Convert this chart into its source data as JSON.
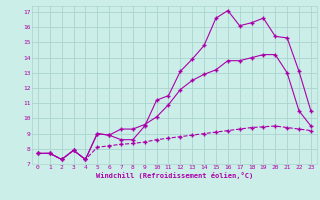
{
  "xlabel": "Windchill (Refroidissement éolien,°C)",
  "bg_color": "#cceee8",
  "grid_color": "#aad4ce",
  "line_color": "#aa00aa",
  "xlim": [
    -0.5,
    23.5
  ],
  "ylim": [
    7,
    17.4
  ],
  "xticks": [
    0,
    1,
    2,
    3,
    4,
    5,
    6,
    7,
    8,
    9,
    10,
    11,
    12,
    13,
    14,
    15,
    16,
    17,
    18,
    19,
    20,
    21,
    22,
    23
  ],
  "yticks": [
    7,
    8,
    9,
    10,
    11,
    12,
    13,
    14,
    15,
    16,
    17
  ],
  "line1_x": [
    0,
    1,
    2,
    3,
    4,
    5,
    6,
    7,
    8,
    9,
    10,
    11,
    12,
    13,
    14,
    15,
    16,
    17,
    18,
    19,
    20,
    21,
    22,
    23
  ],
  "line1_y": [
    7.7,
    7.7,
    7.3,
    7.9,
    7.3,
    9.0,
    8.9,
    8.6,
    8.6,
    9.5,
    11.2,
    11.5,
    13.1,
    13.9,
    14.8,
    16.6,
    17.1,
    16.1,
    16.3,
    16.6,
    15.4,
    15.3,
    13.1,
    10.5
  ],
  "line2_x": [
    0,
    1,
    2,
    3,
    4,
    5,
    6,
    7,
    8,
    9,
    10,
    11,
    12,
    13,
    14,
    15,
    16,
    17,
    18,
    19,
    20,
    21,
    22,
    23
  ],
  "line2_y": [
    7.7,
    7.7,
    7.3,
    7.9,
    7.3,
    9.0,
    8.9,
    9.3,
    9.3,
    9.6,
    10.1,
    10.9,
    11.9,
    12.5,
    12.9,
    13.2,
    13.8,
    13.8,
    14.0,
    14.2,
    14.2,
    13.0,
    10.5,
    9.5
  ],
  "line3_x": [
    0,
    1,
    2,
    3,
    4,
    5,
    6,
    7,
    8,
    9,
    10,
    11,
    12,
    13,
    14,
    15,
    16,
    17,
    18,
    19,
    20,
    21,
    22,
    23
  ],
  "line3_y": [
    7.7,
    7.7,
    7.3,
    7.9,
    7.3,
    8.1,
    8.2,
    8.3,
    8.35,
    8.45,
    8.6,
    8.7,
    8.8,
    8.9,
    9.0,
    9.1,
    9.2,
    9.3,
    9.4,
    9.45,
    9.5,
    9.4,
    9.3,
    9.2
  ]
}
